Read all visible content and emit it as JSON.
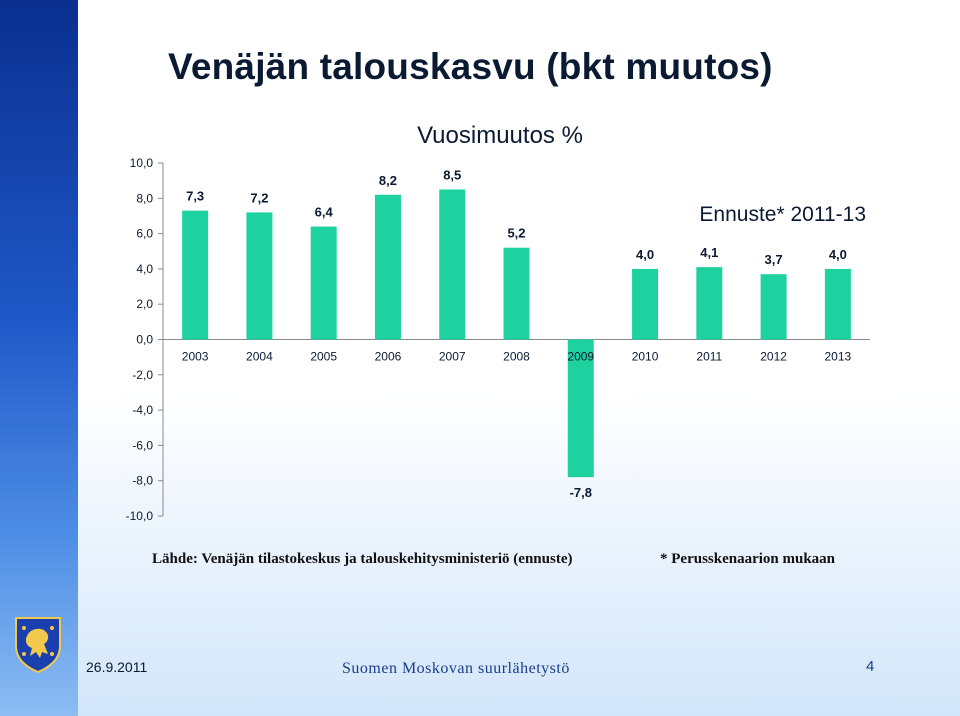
{
  "slide": {
    "title": "Venäjän talouskasvu (bkt muutos)",
    "source": "Lähde: Venäjän tilastokeskus ja talouskehitysministeriö (ennuste)",
    "note": "* Perusskenaarion mukaan",
    "footer_date": "26.9.2011",
    "footer_center": "Suomen  Moskovan suurlähetystö",
    "page_number": "4"
  },
  "colors": {
    "bar": "#1ed2a0",
    "axis": "#8a8a8a",
    "text": "#0b1a33"
  },
  "chart_data": {
    "type": "bar",
    "title": "Vuosimuutos %",
    "categories": [
      "2003",
      "2004",
      "2005",
      "2006",
      "2007",
      "2008",
      "2009",
      "2010",
      "2011",
      "2012",
      "2013"
    ],
    "values": [
      7.3,
      7.2,
      6.4,
      8.2,
      8.5,
      5.2,
      -7.8,
      4.0,
      4.1,
      3.7,
      4.0
    ],
    "data_labels": [
      "7,3",
      "7,2",
      "6,4",
      "8,2",
      "8,5",
      "5,2",
      "-7,8",
      "4,0",
      "4,1",
      "3,7",
      "4,0"
    ],
    "ylim": [
      -10,
      10
    ],
    "yticks": [
      10,
      8,
      6,
      4,
      2,
      0,
      -2,
      -4,
      -6,
      -8,
      -10
    ],
    "ytick_labels": [
      "10,0",
      "8,0",
      "6,0",
      "4,0",
      "2,0",
      "0,0",
      "-2,0",
      "-4,0",
      "-6,0",
      "-8,0",
      "-10,0"
    ],
    "annotation": "Ennuste* 2011-13",
    "grid": false,
    "xlabel": "",
    "ylabel": ""
  }
}
